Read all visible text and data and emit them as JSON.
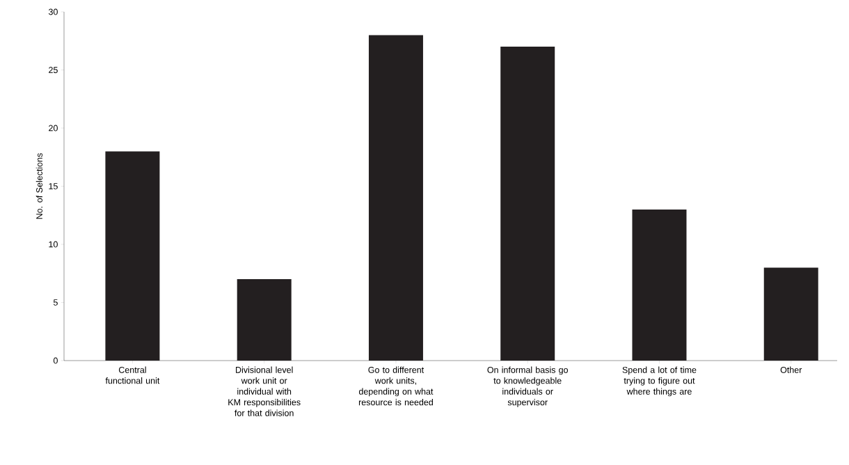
{
  "chart_data": {
    "type": "bar",
    "ylabel": "No. of Selections",
    "categories": [
      "Central functional unit",
      "Divisional level work unit or individual with KM responsibilities for that division",
      "Go to different work units, depending on what resource is needed",
      "On informal basis go to knowledgeable individuals or supervisor",
      "Spend a lot of time trying to figure out where things are",
      "Other"
    ],
    "values": [
      18,
      7,
      28,
      27,
      13,
      8
    ],
    "color": "#231f20",
    "ylim": [
      0,
      30
    ],
    "yticks": [
      0,
      5,
      10,
      15,
      20,
      25,
      30
    ],
    "grid": false
  }
}
